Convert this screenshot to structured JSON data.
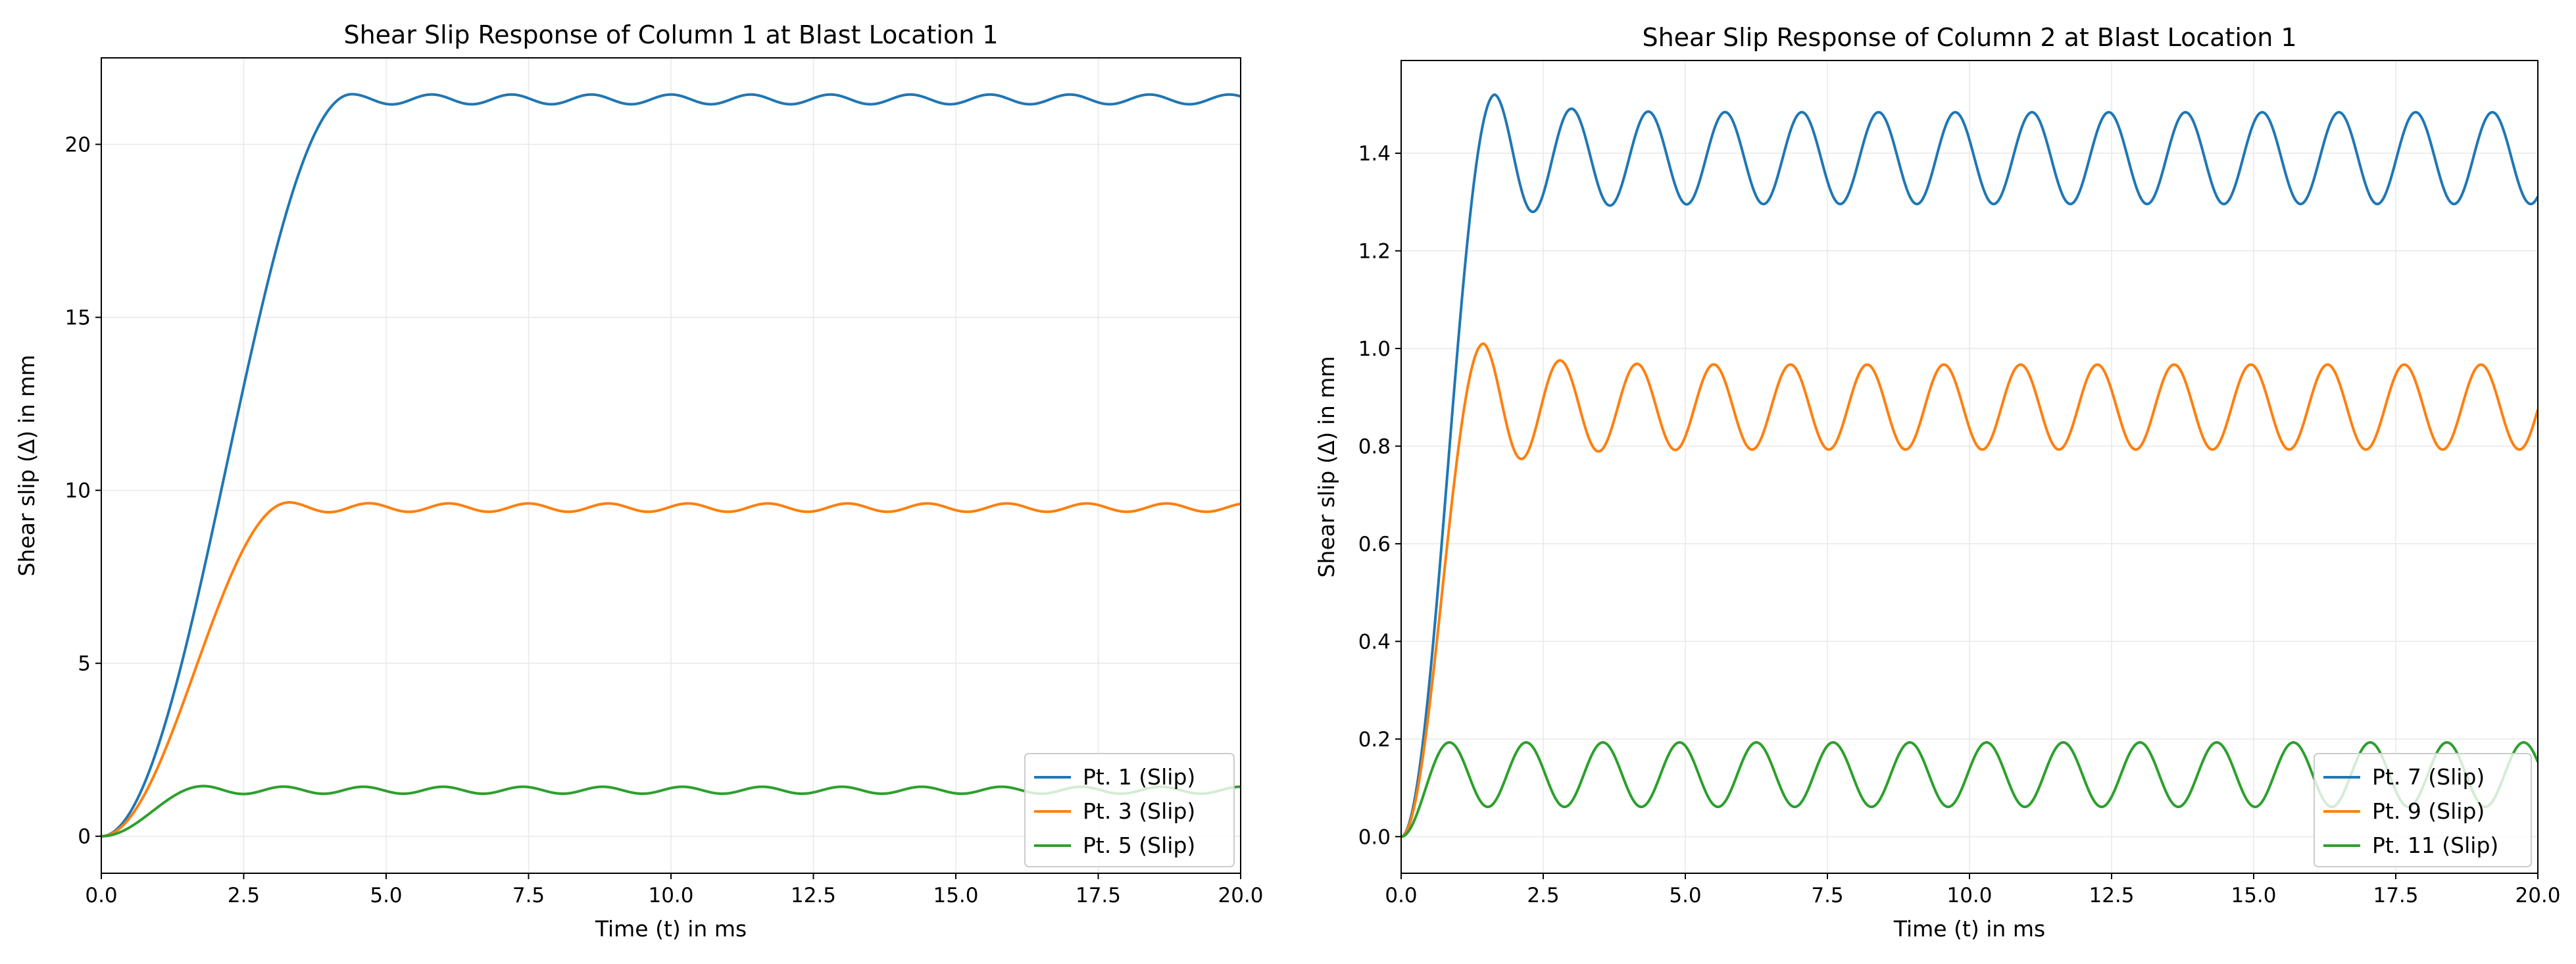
{
  "chart_data": [
    {
      "type": "line",
      "title": "Shear Slip Response of Column 1 at Blast Location 1",
      "xlabel": "Time (t) in ms",
      "ylabel": "Shear slip (Δ) in mm",
      "xlim": [
        0,
        20
      ],
      "ylim": [
        -1.07,
        22.5
      ],
      "xticks": [
        0,
        2.5,
        5,
        7.5,
        10,
        12.5,
        15,
        17.5,
        20
      ],
      "xtick_labels": [
        "0.0",
        "2.5",
        "5.0",
        "7.5",
        "10.0",
        "12.5",
        "15.0",
        "17.5",
        "20.0"
      ],
      "yticks": [
        0,
        5,
        10,
        15,
        20
      ],
      "ytick_labels": [
        "0",
        "5",
        "10",
        "15",
        "20"
      ],
      "grid": true,
      "legend_position": "lower-right",
      "series": [
        {
          "name": "Pt. 1 (Slip)",
          "color": "#1f77b4",
          "model": {
            "steady": 21.3,
            "rise_end_ms": 4.4,
            "osc_amplitude": 0.14,
            "osc_period_ms": 1.4,
            "overshoot": 0.15
          }
        },
        {
          "name": "Pt. 3 (Slip)",
          "color": "#ff7f0e",
          "model": {
            "steady": 9.5,
            "rise_end_ms": 3.3,
            "osc_amplitude": 0.12,
            "osc_period_ms": 1.4,
            "overshoot": 0.15
          }
        },
        {
          "name": "Pt. 5 (Slip)",
          "color": "#2ca02c",
          "model": {
            "steady": 1.33,
            "rise_end_ms": 1.8,
            "osc_amplitude": 0.1,
            "osc_period_ms": 1.4,
            "overshoot": 0.12
          }
        }
      ]
    },
    {
      "type": "line",
      "title": "Shear Slip Response of Column 2 at Blast Location 1",
      "xlabel": "Time (t) in ms",
      "ylabel": "Shear slip (Δ) in mm",
      "xlim": [
        0,
        20
      ],
      "ylim": [
        -0.075,
        1.59
      ],
      "xticks": [
        0,
        2.5,
        5,
        7.5,
        10,
        12.5,
        15,
        17.5,
        20
      ],
      "xtick_labels": [
        "0.0",
        "2.5",
        "5.0",
        "7.5",
        "10.0",
        "12.5",
        "15.0",
        "17.5",
        "20.0"
      ],
      "yticks": [
        0,
        0.2,
        0.4,
        0.6,
        0.8,
        1.0,
        1.2,
        1.4
      ],
      "ytick_labels": [
        "0.0",
        "0.2",
        "0.4",
        "0.6",
        "0.8",
        "1.0",
        "1.2",
        "1.4"
      ],
      "grid": true,
      "legend_position": "lower-right",
      "series": [
        {
          "name": "Pt. 7 (Slip)",
          "color": "#1f77b4",
          "model": {
            "steady": 1.39,
            "rise_end_ms": 1.65,
            "osc_amplitude": 0.094,
            "osc_period_ms": 1.35,
            "overshoot": 0.13
          }
        },
        {
          "name": "Pt. 9 (Slip)",
          "color": "#ff7f0e",
          "model": {
            "steady": 0.88,
            "rise_end_ms": 1.45,
            "osc_amplitude": 0.087,
            "osc_period_ms": 1.35,
            "overshoot": 0.13
          }
        },
        {
          "name": "Pt. 11 (Slip)",
          "color": "#2ca02c",
          "model": {
            "steady": 0.127,
            "rise_end_ms": 0.85,
            "osc_amplitude": 0.066,
            "osc_period_ms": 1.35,
            "overshoot": 0.066
          }
        }
      ]
    }
  ]
}
